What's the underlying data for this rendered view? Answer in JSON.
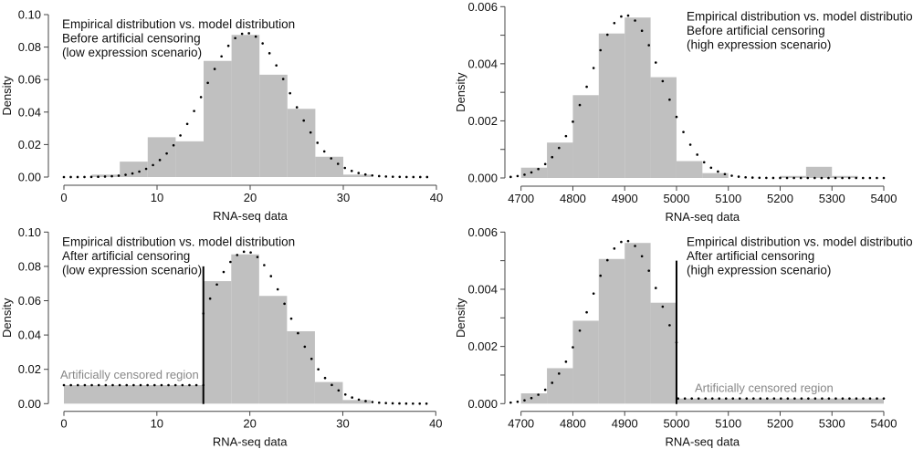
{
  "chart_data": [
    {
      "id": "top-left",
      "type": "bar",
      "subtype": "histogram-with-density",
      "xlabel": "RNA-seq data",
      "ylabel": "Density",
      "xlim": [
        0,
        40
      ],
      "ylim": [
        0,
        0.1
      ],
      "xticks": [
        0,
        10,
        20,
        30,
        40
      ],
      "xtick_labels": [
        "0",
        "10",
        "20",
        "30",
        "40"
      ],
      "yticks": [
        0.0,
        0.02,
        0.04,
        0.06,
        0.08,
        0.1
      ],
      "ytick_labels": [
        "0.00",
        "0.02",
        "0.04",
        "0.06",
        "0.08",
        "0.10"
      ],
      "yminor_ticks": [],
      "annotation": [
        "Empirical distribution vs. model distribution",
        "Before artificial censoring",
        "(low expression scenario)"
      ],
      "annotation_position": "top-left",
      "bins": [
        {
          "start": 3,
          "end": 6,
          "density": 0.0015
        },
        {
          "start": 6,
          "end": 9,
          "density": 0.0095
        },
        {
          "start": 9,
          "end": 12,
          "density": 0.0245
        },
        {
          "start": 12,
          "end": 15,
          "density": 0.022
        },
        {
          "start": 15,
          "end": 18,
          "density": 0.0715
        },
        {
          "start": 18,
          "end": 21,
          "density": 0.0875
        },
        {
          "start": 21,
          "end": 24,
          "density": 0.063
        },
        {
          "start": 24,
          "end": 27,
          "density": 0.042
        },
        {
          "start": 27,
          "end": 30,
          "density": 0.0125
        },
        {
          "start": 30,
          "end": 33,
          "density": 0.0015
        }
      ],
      "model": {
        "distribution": "normal",
        "mean": 19.6,
        "sd": 4.5,
        "x_range": [
          0,
          39
        ]
      },
      "censor": null
    },
    {
      "id": "top-right",
      "type": "bar",
      "subtype": "histogram-with-density",
      "xlabel": "RNA-seq data",
      "ylabel": "Density",
      "xlim": [
        4700,
        5400
      ],
      "ylim": [
        0,
        0.006
      ],
      "xticks": [
        4700,
        4800,
        4900,
        5000,
        5100,
        5200,
        5300,
        5400
      ],
      "xtick_labels": [
        "4700",
        "4800",
        "4900",
        "5000",
        "5100",
        "5200",
        "5300",
        "5400"
      ],
      "yticks": [
        0.0,
        0.002,
        0.004,
        0.006
      ],
      "ytick_labels": [
        "0.000",
        "0.002",
        "0.004",
        "0.006"
      ],
      "yminor_ticks": [
        0.001,
        0.003,
        0.005
      ],
      "annotation": [
        "Empirical distribution vs. model distribution",
        "Before artificial censoring",
        "(high expression scenario)"
      ],
      "annotation_position": "top-right",
      "bins": [
        {
          "start": 4700,
          "end": 4750,
          "density": 0.00036
        },
        {
          "start": 4750,
          "end": 4800,
          "density": 0.00124
        },
        {
          "start": 4800,
          "end": 4850,
          "density": 0.0029
        },
        {
          "start": 4850,
          "end": 4900,
          "density": 0.00506
        },
        {
          "start": 4900,
          "end": 4950,
          "density": 0.00562
        },
        {
          "start": 4950,
          "end": 5000,
          "density": 0.00353
        },
        {
          "start": 5000,
          "end": 5050,
          "density": 0.00059
        },
        {
          "start": 5050,
          "end": 5100,
          "density": 0.00017
        },
        {
          "start": 5100,
          "end": 5150,
          "density": 0
        },
        {
          "start": 5150,
          "end": 5200,
          "density": 0
        },
        {
          "start": 5200,
          "end": 5250,
          "density": 7e-05
        },
        {
          "start": 5250,
          "end": 5300,
          "density": 0.00039
        },
        {
          "start": 5300,
          "end": 5350,
          "density": 7e-05
        }
      ],
      "model": {
        "distribution": "normal",
        "mean": 4902,
        "sd": 70,
        "x_range": [
          4680,
          5400
        ]
      },
      "censor": null
    },
    {
      "id": "bottom-left",
      "type": "bar",
      "subtype": "histogram-with-density",
      "xlabel": "RNA-seq data",
      "ylabel": "Density",
      "xlim": [
        0,
        40
      ],
      "ylim": [
        0,
        0.1
      ],
      "xticks": [
        0,
        10,
        20,
        30,
        40
      ],
      "xtick_labels": [
        "0",
        "10",
        "20",
        "30",
        "40"
      ],
      "yticks": [
        0.0,
        0.02,
        0.04,
        0.06,
        0.08,
        0.1
      ],
      "ytick_labels": [
        "0.00",
        "0.02",
        "0.04",
        "0.06",
        "0.08",
        "0.10"
      ],
      "yminor_ticks": [],
      "annotation": [
        "Empirical distribution vs. model distribution",
        "After artificial censoring",
        "(low expression scenario)"
      ],
      "annotation_position": "top-left",
      "bins": [
        {
          "start": 0,
          "end": 15,
          "density": 0.0108
        },
        {
          "start": 15,
          "end": 18,
          "density": 0.0714
        },
        {
          "start": 18,
          "end": 21,
          "density": 0.087
        },
        {
          "start": 21,
          "end": 24,
          "density": 0.0628
        },
        {
          "start": 24,
          "end": 27,
          "density": 0.0422
        },
        {
          "start": 27,
          "end": 30,
          "density": 0.0126
        },
        {
          "start": 30,
          "end": 33,
          "density": 0.0021
        }
      ],
      "model": {
        "distribution": "normal",
        "mean": 19.6,
        "sd": 4.5,
        "x_range": [
          15,
          39
        ]
      },
      "censor": {
        "side": "left",
        "threshold": 15,
        "line_top": 0.08,
        "region_density": 0.0108,
        "label": "Artificially censored region"
      }
    },
    {
      "id": "bottom-right",
      "type": "bar",
      "subtype": "histogram-with-density",
      "xlabel": "RNA-seq data",
      "ylabel": "Density",
      "xlim": [
        4700,
        5400
      ],
      "ylim": [
        0,
        0.006
      ],
      "xticks": [
        4700,
        4800,
        4900,
        5000,
        5100,
        5200,
        5300,
        5400
      ],
      "xtick_labels": [
        "4700",
        "4800",
        "4900",
        "5000",
        "5100",
        "5200",
        "5300",
        "5400"
      ],
      "yticks": [
        0.0,
        0.002,
        0.004,
        0.006
      ],
      "ytick_labels": [
        "0.000",
        "0.002",
        "0.004",
        "0.006"
      ],
      "yminor_ticks": [
        0.001,
        0.003,
        0.005
      ],
      "annotation": [
        "Empirical distribution vs. model distribution",
        "After artificial censoring",
        "(high expression scenario)"
      ],
      "annotation_position": "top-right",
      "bins": [
        {
          "start": 4700,
          "end": 4750,
          "density": 0.00036
        },
        {
          "start": 4750,
          "end": 4800,
          "density": 0.00124
        },
        {
          "start": 4800,
          "end": 4850,
          "density": 0.0029
        },
        {
          "start": 4850,
          "end": 4900,
          "density": 0.00506
        },
        {
          "start": 4900,
          "end": 4950,
          "density": 0.00562
        },
        {
          "start": 4950,
          "end": 5000,
          "density": 0.00353
        },
        {
          "start": 5000,
          "end": 5400,
          "density": 0.00018
        }
      ],
      "model": {
        "distribution": "normal",
        "mean": 4902,
        "sd": 70,
        "x_range": [
          4680,
          5000
        ]
      },
      "censor": {
        "side": "right",
        "threshold": 5000,
        "line_top": 0.005,
        "region_density": 0.00018,
        "label": "Artificially censored region"
      }
    }
  ],
  "colors": {
    "bar_fill": "#c0c0c0",
    "axis": "#444444",
    "curve": "#000000",
    "censor_line": "#000000",
    "censor_label": "#888888"
  }
}
